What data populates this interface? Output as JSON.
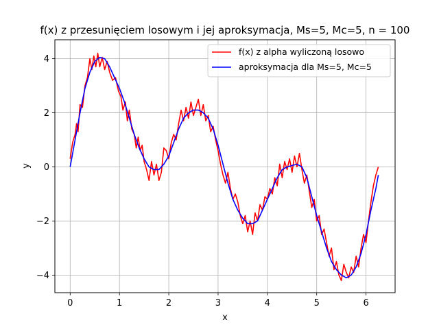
{
  "chart_data": {
    "type": "line",
    "title": "f(x) z przesunięciem losowym i jej aproksymacja, Ms=5, Mc=5, n = 100",
    "xlabel": "x",
    "ylabel": "y",
    "xlim": [
      -0.31,
      6.59
    ],
    "ylim": [
      -4.65,
      4.7
    ],
    "xticks": [
      0,
      1,
      2,
      3,
      4,
      5,
      6
    ],
    "yticks": [
      -4,
      -2,
      0,
      2,
      4
    ],
    "grid": true,
    "legend_position": "top-right",
    "series": [
      {
        "name": "f(x) z alpha wyliczoną losowo",
        "color": "#ff0000",
        "points": [
          [
            0.0,
            0.3
          ],
          [
            0.05,
            0.9
          ],
          [
            0.1,
            1.2
          ],
          [
            0.13,
            1.6
          ],
          [
            0.16,
            1.3
          ],
          [
            0.2,
            2.3
          ],
          [
            0.25,
            2.2
          ],
          [
            0.3,
            3.0
          ],
          [
            0.35,
            3.3
          ],
          [
            0.4,
            4.0
          ],
          [
            0.44,
            3.6
          ],
          [
            0.48,
            4.1
          ],
          [
            0.52,
            3.7
          ],
          [
            0.56,
            4.2
          ],
          [
            0.6,
            3.7
          ],
          [
            0.65,
            4.05
          ],
          [
            0.7,
            3.6
          ],
          [
            0.75,
            3.9
          ],
          [
            0.8,
            3.5
          ],
          [
            0.86,
            3.2
          ],
          [
            0.92,
            3.3
          ],
          [
            0.98,
            2.8
          ],
          [
            1.03,
            2.6
          ],
          [
            1.07,
            2.1
          ],
          [
            1.12,
            2.4
          ],
          [
            1.16,
            1.7
          ],
          [
            1.2,
            2.1
          ],
          [
            1.25,
            1.4
          ],
          [
            1.3,
            1.2
          ],
          [
            1.34,
            0.7
          ],
          [
            1.38,
            1.1
          ],
          [
            1.42,
            0.6
          ],
          [
            1.46,
            0.8
          ],
          [
            1.5,
            0.2
          ],
          [
            1.55,
            -0.1
          ],
          [
            1.6,
            -0.5
          ],
          [
            1.65,
            0.2
          ],
          [
            1.7,
            -0.3
          ],
          [
            1.75,
            0.1
          ],
          [
            1.8,
            -0.5
          ],
          [
            1.85,
            -0.2
          ],
          [
            1.9,
            0.7
          ],
          [
            1.95,
            0.6
          ],
          [
            2.0,
            0.3
          ],
          [
            2.05,
            0.9
          ],
          [
            2.1,
            1.2
          ],
          [
            2.15,
            1.0
          ],
          [
            2.2,
            1.6
          ],
          [
            2.25,
            2.1
          ],
          [
            2.3,
            1.7
          ],
          [
            2.35,
            2.2
          ],
          [
            2.4,
            1.8
          ],
          [
            2.45,
            2.4
          ],
          [
            2.5,
            1.9
          ],
          [
            2.55,
            2.2
          ],
          [
            2.6,
            2.5
          ],
          [
            2.65,
            1.9
          ],
          [
            2.7,
            2.3
          ],
          [
            2.75,
            1.7
          ],
          [
            2.8,
            1.9
          ],
          [
            2.85,
            1.3
          ],
          [
            2.9,
            1.5
          ],
          [
            2.95,
            1.0
          ],
          [
            3.0,
            0.6
          ],
          [
            3.05,
            0.1
          ],
          [
            3.1,
            -0.3
          ],
          [
            3.15,
            -0.6
          ],
          [
            3.2,
            -0.2
          ],
          [
            3.25,
            -0.8
          ],
          [
            3.3,
            -1.2
          ],
          [
            3.35,
            -1.0
          ],
          [
            3.4,
            -1.3
          ],
          [
            3.45,
            -1.8
          ],
          [
            3.5,
            -2.1
          ],
          [
            3.55,
            -1.8
          ],
          [
            3.6,
            -2.4
          ],
          [
            3.65,
            -2.0
          ],
          [
            3.7,
            -2.5
          ],
          [
            3.75,
            -1.7
          ],
          [
            3.8,
            -2.0
          ],
          [
            3.85,
            -1.4
          ],
          [
            3.9,
            -1.6
          ],
          [
            3.95,
            -1.1
          ],
          [
            4.0,
            -1.2
          ],
          [
            4.05,
            -0.8
          ],
          [
            4.1,
            -1.0
          ],
          [
            4.15,
            -0.4
          ],
          [
            4.2,
            -0.7
          ],
          [
            4.25,
            0.1
          ],
          [
            4.3,
            -0.4
          ],
          [
            4.35,
            0.2
          ],
          [
            4.4,
            -0.1
          ],
          [
            4.45,
            0.3
          ],
          [
            4.5,
            -0.2
          ],
          [
            4.55,
            0.4
          ],
          [
            4.6,
            0.0
          ],
          [
            4.65,
            0.5
          ],
          [
            4.7,
            -0.1
          ],
          [
            4.75,
            -0.6
          ],
          [
            4.8,
            -0.3
          ],
          [
            4.85,
            -0.9
          ],
          [
            4.9,
            -1.5
          ],
          [
            4.95,
            -1.2
          ],
          [
            5.0,
            -2.0
          ],
          [
            5.05,
            -1.8
          ],
          [
            5.1,
            -2.5
          ],
          [
            5.15,
            -2.3
          ],
          [
            5.2,
            -2.8
          ],
          [
            5.25,
            -3.3
          ],
          [
            5.3,
            -3.0
          ],
          [
            5.35,
            -3.8
          ],
          [
            5.4,
            -3.5
          ],
          [
            5.45,
            -4.0
          ],
          [
            5.5,
            -4.2
          ],
          [
            5.55,
            -3.6
          ],
          [
            5.6,
            -3.9
          ],
          [
            5.65,
            -4.1
          ],
          [
            5.7,
            -3.7
          ],
          [
            5.75,
            -3.9
          ],
          [
            5.8,
            -3.3
          ],
          [
            5.85,
            -3.7
          ],
          [
            5.9,
            -3.0
          ],
          [
            5.95,
            -2.5
          ],
          [
            6.0,
            -2.8
          ],
          [
            6.05,
            -2.0
          ],
          [
            6.1,
            -1.3
          ],
          [
            6.15,
            -0.7
          ],
          [
            6.2,
            -0.3
          ],
          [
            6.25,
            0.0
          ]
        ]
      },
      {
        "name": "aproksymacja dla Ms=5, Mc=5",
        "color": "#0000ff",
        "points": [
          [
            0.0,
            0.0
          ],
          [
            0.1,
            1.0
          ],
          [
            0.2,
            2.0
          ],
          [
            0.3,
            2.9
          ],
          [
            0.4,
            3.5
          ],
          [
            0.5,
            3.9
          ],
          [
            0.6,
            4.05
          ],
          [
            0.7,
            4.0
          ],
          [
            0.8,
            3.7
          ],
          [
            0.9,
            3.3
          ],
          [
            1.0,
            2.9
          ],
          [
            1.1,
            2.4
          ],
          [
            1.2,
            1.8
          ],
          [
            1.3,
            1.2
          ],
          [
            1.4,
            0.7
          ],
          [
            1.5,
            0.3
          ],
          [
            1.6,
            0.0
          ],
          [
            1.7,
            -0.1
          ],
          [
            1.8,
            -0.1
          ],
          [
            1.9,
            0.1
          ],
          [
            2.0,
            0.4
          ],
          [
            2.1,
            0.9
          ],
          [
            2.2,
            1.4
          ],
          [
            2.3,
            1.8
          ],
          [
            2.4,
            2.0
          ],
          [
            2.5,
            2.1
          ],
          [
            2.6,
            2.1
          ],
          [
            2.7,
            2.0
          ],
          [
            2.8,
            1.8
          ],
          [
            2.9,
            1.4
          ],
          [
            3.0,
            0.8
          ],
          [
            3.1,
            0.1
          ],
          [
            3.2,
            -0.6
          ],
          [
            3.3,
            -1.2
          ],
          [
            3.4,
            -1.6
          ],
          [
            3.5,
            -1.9
          ],
          [
            3.6,
            -2.1
          ],
          [
            3.7,
            -2.1
          ],
          [
            3.8,
            -2.0
          ],
          [
            3.9,
            -1.6
          ],
          [
            4.0,
            -1.2
          ],
          [
            4.1,
            -0.8
          ],
          [
            4.2,
            -0.4
          ],
          [
            4.3,
            -0.1
          ],
          [
            4.4,
            0.0
          ],
          [
            4.5,
            0.05
          ],
          [
            4.6,
            0.1
          ],
          [
            4.7,
            0.0
          ],
          [
            4.8,
            -0.4
          ],
          [
            4.9,
            -1.1
          ],
          [
            5.0,
            -1.8
          ],
          [
            5.1,
            -2.4
          ],
          [
            5.2,
            -3.0
          ],
          [
            5.3,
            -3.5
          ],
          [
            5.4,
            -3.8
          ],
          [
            5.5,
            -4.0
          ],
          [
            5.6,
            -4.1
          ],
          [
            5.7,
            -4.0
          ],
          [
            5.8,
            -3.7
          ],
          [
            5.9,
            -3.2
          ],
          [
            6.0,
            -2.5
          ],
          [
            6.1,
            -1.6
          ],
          [
            6.2,
            -0.8
          ],
          [
            6.25,
            -0.3
          ]
        ]
      }
    ]
  }
}
